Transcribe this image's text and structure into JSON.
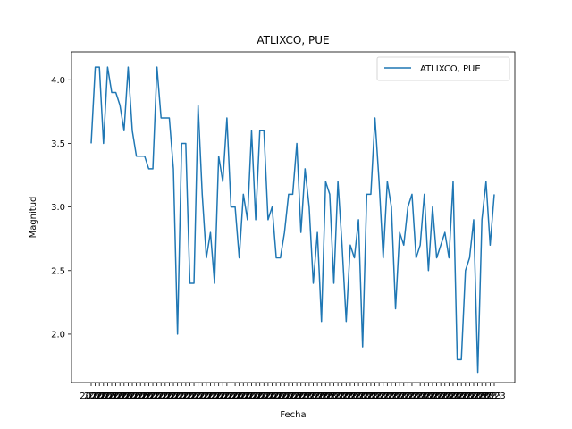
{
  "chart_data": {
    "type": "line",
    "title": "ATLIXCO, PUE",
    "xlabel": "Fecha",
    "ylabel": "Magnitud",
    "ylim": [
      1.62,
      4.22
    ],
    "yticks": [
      2.0,
      2.5,
      3.0,
      3.5,
      4.0
    ],
    "ytick_labels": [
      "2.0",
      "2.5",
      "3.0",
      "3.5",
      "4.0"
    ],
    "xtick_labels_note": "dense overlapping date labels (unreadable)",
    "xtick_first_label": "2022",
    "xtick_last_label": "2023",
    "grid": false,
    "legend_position": "top-right",
    "series": [
      {
        "name": "ATLIXCO, PUE",
        "color": "#1f77b4",
        "values": [
          3.5,
          4.1,
          4.1,
          3.5,
          4.1,
          3.9,
          3.9,
          3.8,
          3.6,
          4.1,
          3.6,
          3.4,
          3.4,
          3.4,
          3.3,
          3.3,
          4.1,
          3.7,
          3.7,
          3.7,
          3.3,
          2.0,
          3.5,
          3.5,
          2.4,
          2.4,
          3.8,
          3.1,
          2.6,
          2.8,
          2.4,
          3.4,
          3.2,
          3.7,
          3.0,
          3.0,
          2.6,
          3.1,
          2.9,
          3.6,
          2.9,
          3.6,
          3.6,
          2.9,
          3.0,
          2.6,
          2.6,
          2.8,
          3.1,
          3.1,
          3.5,
          2.8,
          3.3,
          3.0,
          2.4,
          2.8,
          2.1,
          3.2,
          3.1,
          2.4,
          3.2,
          2.7,
          2.1,
          2.7,
          2.6,
          2.9,
          1.9,
          3.1,
          3.1,
          3.7,
          3.2,
          2.6,
          3.2,
          3.0,
          2.2,
          2.8,
          2.7,
          3.0,
          3.1,
          2.6,
          2.7,
          3.1,
          2.5,
          3.0,
          2.6,
          2.7,
          2.8,
          2.6,
          3.2,
          1.8,
          1.8,
          2.5,
          2.6,
          2.9,
          1.7,
          2.9,
          3.2,
          2.7,
          3.1
        ]
      }
    ]
  }
}
